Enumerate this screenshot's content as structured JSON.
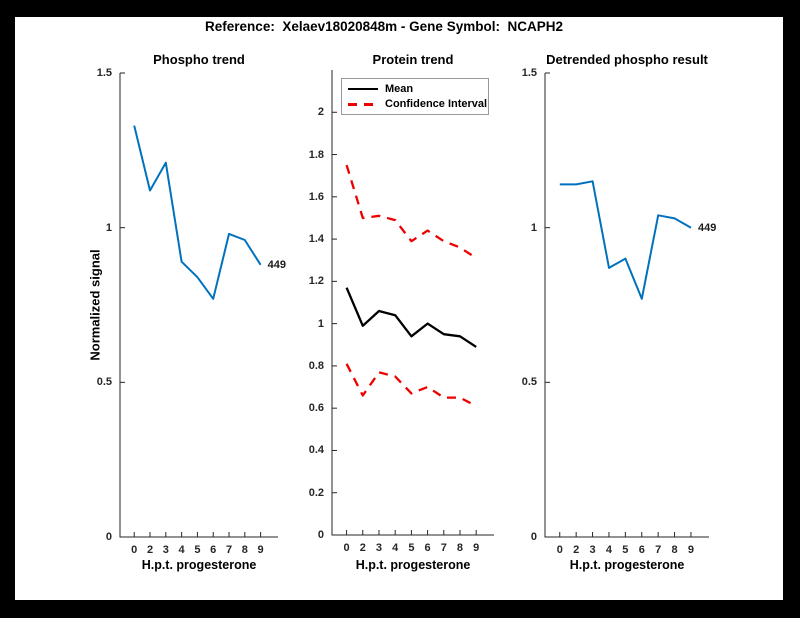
{
  "figure": {
    "title": "Reference:  Xelaev18020848m - Gene Symbol:  NCAPH2"
  },
  "colors": {
    "blue": "#0072BD",
    "red": "#ee0000",
    "black": "#000000",
    "axis": "#262626",
    "frame": "#000000",
    "background": "#ffffff"
  },
  "legend": {
    "entries": [
      {
        "label": "Mean",
        "style": "solid",
        "color": "#000000"
      },
      {
        "label": "Confidence Interval",
        "style": "dashed",
        "color": "#ee0000"
      }
    ]
  },
  "chart_data": [
    {
      "type": "line",
      "title": "Phospho trend",
      "xlabel": "H.p.t. progesterone",
      "ylabel": "Normalized signal",
      "x_tick_labels": [
        "0",
        "2",
        "3",
        "4",
        "5",
        "6",
        "7",
        "8",
        "9"
      ],
      "ylim": [
        0,
        1.5
      ],
      "yticks": [
        0,
        0.5,
        1,
        1.5
      ],
      "ytick_labels": [
        "0",
        "0.5",
        "1",
        "1.5"
      ],
      "grid": false,
      "series": [
        {
          "name": "phospho-signal",
          "color": "#0072BD",
          "style": "solid",
          "width": 2,
          "values": [
            1.33,
            1.12,
            1.21,
            0.89,
            0.84,
            0.77,
            0.98,
            0.96,
            0.88
          ]
        }
      ],
      "end_label": "449"
    },
    {
      "type": "line",
      "title": "Protein trend",
      "xlabel": "H.p.t. progesterone",
      "ylabel": null,
      "x_tick_labels": [
        "0",
        "2",
        "3",
        "4",
        "5",
        "6",
        "7",
        "8",
        "9"
      ],
      "ylim": [
        0,
        2.2
      ],
      "yticks": [
        0,
        0.2,
        0.4,
        0.6,
        0.8,
        1,
        1.2,
        1.4,
        1.6,
        1.8,
        2
      ],
      "ytick_labels": [
        "0",
        "0.2",
        "0.4",
        "0.6",
        "0.8",
        "1",
        "1.2",
        "1.4",
        "1.6",
        "1.8",
        "2"
      ],
      "grid": false,
      "legend_position": "top-left-inside",
      "series": [
        {
          "name": "ci-upper",
          "color": "#ee0000",
          "style": "dashed",
          "width": 2.3,
          "values": [
            1.75,
            1.5,
            1.51,
            1.49,
            1.39,
            1.44,
            1.39,
            1.36,
            1.31
          ]
        },
        {
          "name": "mean",
          "color": "#000000",
          "style": "solid",
          "width": 2.3,
          "values": [
            1.17,
            0.99,
            1.06,
            1.04,
            0.94,
            1.0,
            0.95,
            0.94,
            0.89
          ]
        },
        {
          "name": "ci-lower",
          "color": "#ee0000",
          "style": "dashed",
          "width": 2.3,
          "values": [
            0.81,
            0.66,
            0.77,
            0.75,
            0.67,
            0.7,
            0.65,
            0.65,
            0.61
          ]
        }
      ],
      "end_label": null
    },
    {
      "type": "line",
      "title": "Detrended phospho result",
      "xlabel": "H.p.t. progesterone",
      "ylabel": null,
      "x_tick_labels": [
        "0",
        "2",
        "3",
        "4",
        "5",
        "6",
        "7",
        "8",
        "9"
      ],
      "ylim": [
        0,
        1.5
      ],
      "yticks": [
        0,
        0.5,
        1,
        1.5
      ],
      "ytick_labels": [
        "0",
        "0.5",
        "1",
        "1.5"
      ],
      "grid": false,
      "series": [
        {
          "name": "detrended-phospho",
          "color": "#0072BD",
          "style": "solid",
          "width": 2,
          "values": [
            1.14,
            1.14,
            1.15,
            0.87,
            0.9,
            0.77,
            1.04,
            1.03,
            1.0
          ]
        }
      ],
      "end_label": "449"
    }
  ]
}
